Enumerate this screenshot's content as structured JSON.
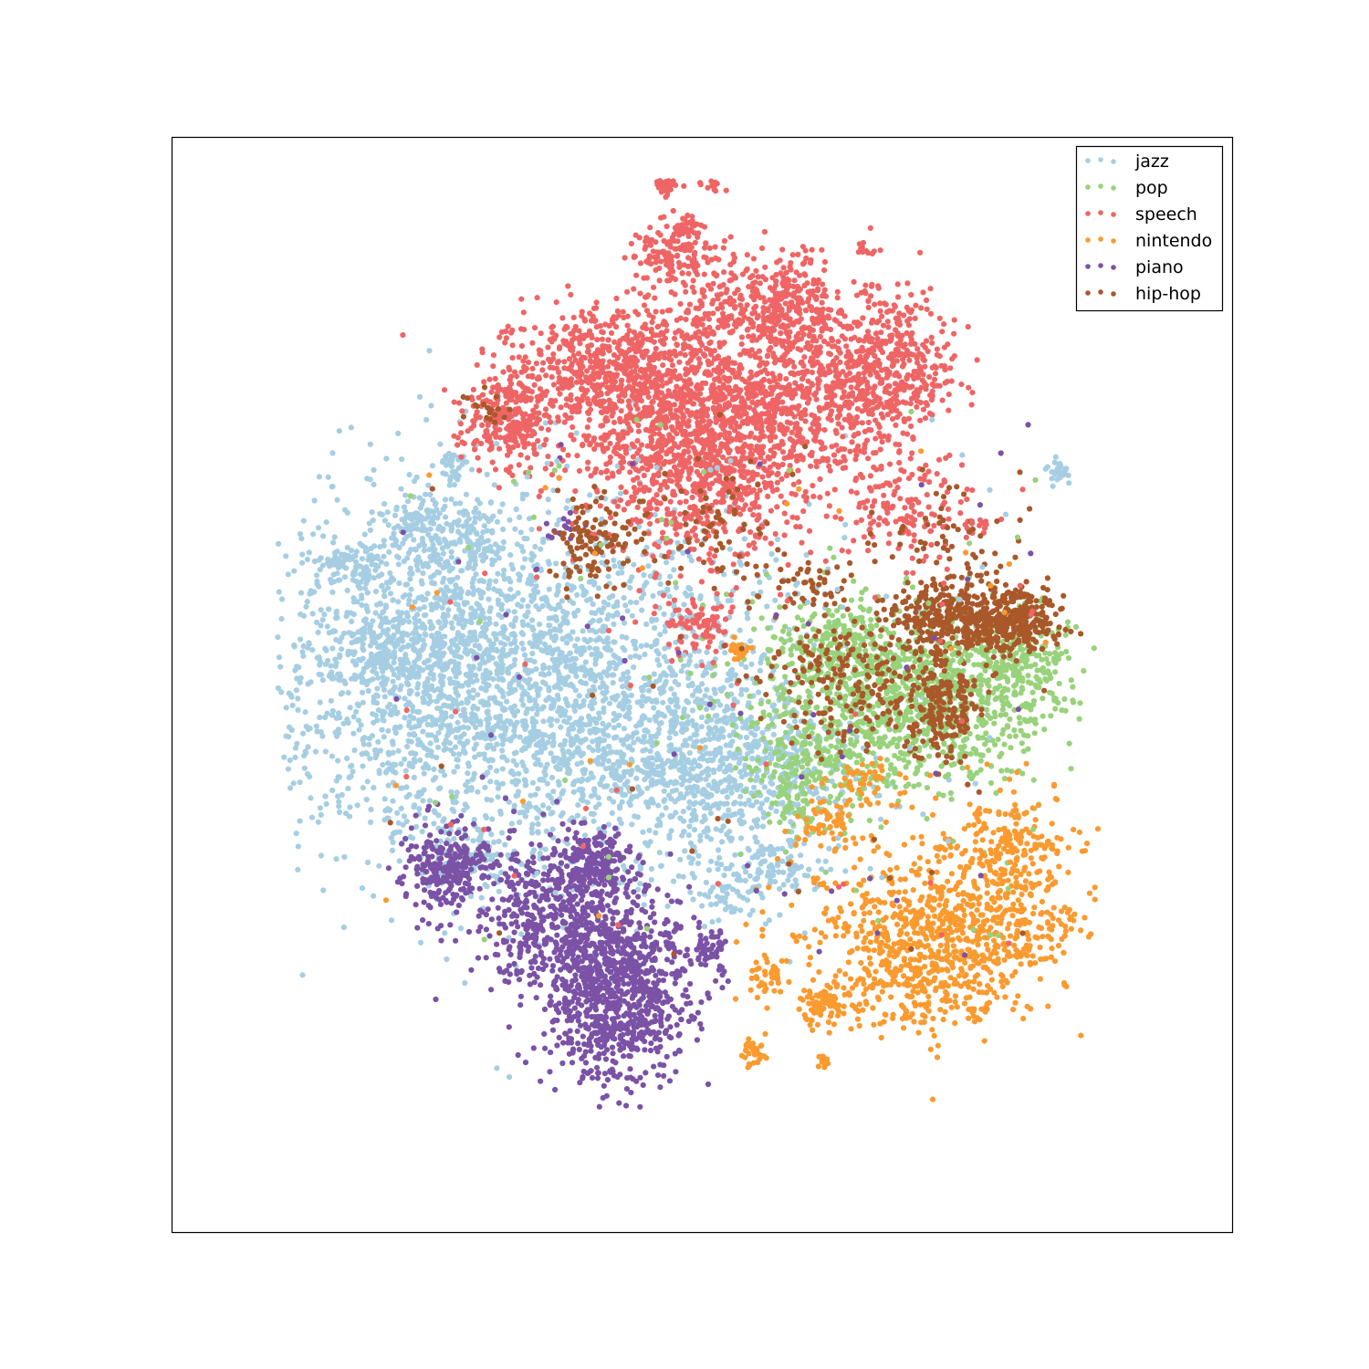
{
  "chart_data": {
    "type": "scatter",
    "title": "",
    "xlabel": "",
    "ylabel": "",
    "xlim": [
      -100,
      100
    ],
    "ylim": [
      -100,
      100
    ],
    "ticks": false,
    "grid": false,
    "legend_position": "top-right",
    "series": [
      {
        "name": "jazz",
        "color": "#a6cee3",
        "clusters": [
          {
            "cx": -30,
            "cy": -2,
            "sx": 23,
            "sy": 17,
            "n": 2600
          },
          {
            "cx": -55,
            "cy": 8,
            "sx": 12,
            "sy": 14,
            "n": 700
          },
          {
            "cx": 5,
            "cy": -14,
            "sx": 13,
            "sy": 8,
            "n": 650
          },
          {
            "cx": -66,
            "cy": 22,
            "sx": 3,
            "sy": 2,
            "n": 70
          },
          {
            "cx": -60,
            "cy": 6,
            "sx": 4,
            "sy": 3,
            "n": 90
          },
          {
            "cx": -53,
            "cy": 30,
            "sx": 3,
            "sy": 3,
            "n": 90
          },
          {
            "cx": -44,
            "cy": 27,
            "sx": 3,
            "sy": 3,
            "n": 70
          },
          {
            "cx": -45,
            "cy": -31,
            "sx": 4,
            "sy": 3,
            "n": 80
          },
          {
            "cx": -47,
            "cy": 40,
            "sx": 1.3,
            "sy": 1.3,
            "n": 30
          },
          {
            "cx": 67,
            "cy": 39,
            "sx": 1.3,
            "sy": 1,
            "n": 25
          },
          {
            "cx": 14,
            "cy": -33,
            "sx": 5,
            "sy": 3,
            "n": 110
          },
          {
            "cx": 4,
            "cy": -38,
            "sx": 3,
            "sy": 2,
            "n": 40
          }
        ]
      },
      {
        "name": "pop",
        "color": "#98d27a",
        "clusters": [
          {
            "cx": 38,
            "cy": -3,
            "sx": 14,
            "sy": 8,
            "n": 1150
          },
          {
            "cx": 59,
            "cy": 4,
            "sx": 6,
            "sy": 5,
            "n": 200
          },
          {
            "cx": 18,
            "cy": -18,
            "sx": 4,
            "sy": 5,
            "n": 150
          },
          {
            "cx": 24,
            "cy": 8,
            "sx": 8,
            "sy": 4,
            "n": 150
          }
        ]
      },
      {
        "name": "speech",
        "color": "#ef6565",
        "clusters": [
          {
            "cx": 0,
            "cy": 45,
            "sx": 11,
            "sy": 10,
            "n": 1500
          },
          {
            "cx": -18,
            "cy": 57,
            "sx": 9,
            "sy": 6,
            "n": 650
          },
          {
            "cx": 24,
            "cy": 56,
            "sx": 9,
            "sy": 8,
            "n": 550
          },
          {
            "cx": 36,
            "cy": 59,
            "sx": 6,
            "sy": 6,
            "n": 300
          },
          {
            "cx": -37,
            "cy": 48,
            "sx": 4,
            "sy": 4,
            "n": 250
          },
          {
            "cx": 16,
            "cy": 70,
            "sx": 4,
            "sy": 4,
            "n": 220
          },
          {
            "cx": 3,
            "cy": 69,
            "sx": 5,
            "sy": 5,
            "n": 150
          },
          {
            "cx": -6,
            "cy": 79,
            "sx": 4,
            "sy": 3,
            "n": 120
          },
          {
            "cx": -7,
            "cy": 92,
            "sx": 1.2,
            "sy": 1.3,
            "n": 45
          },
          {
            "cx": 3,
            "cy": 92,
            "sx": 1.2,
            "sy": 1,
            "n": 20
          },
          {
            "cx": -3,
            "cy": 84,
            "sx": 2,
            "sy": 1.3,
            "n": 30
          },
          {
            "cx": 38,
            "cy": 33,
            "sx": 6,
            "sy": 5,
            "n": 150
          },
          {
            "cx": -1,
            "cy": 11,
            "sx": 3,
            "sy": 3,
            "n": 90
          },
          {
            "cx": 31,
            "cy": 79,
            "sx": 1,
            "sy": 1,
            "n": 10
          },
          {
            "cx": 52,
            "cy": 29,
            "sx": 1.5,
            "sy": 1,
            "n": 15
          }
        ]
      },
      {
        "name": "nintendo",
        "color": "#fb9a2f",
        "clusters": [
          {
            "cx": 45,
            "cy": -45,
            "sx": 12,
            "sy": 8,
            "n": 800
          },
          {
            "cx": 59,
            "cy": -35,
            "sx": 6,
            "sy": 8,
            "n": 200
          },
          {
            "cx": 24,
            "cy": -58,
            "sx": 3,
            "sy": 2,
            "n": 90
          },
          {
            "cx": 12,
            "cy": -54,
            "sx": 2,
            "sy": 2,
            "n": 40
          },
          {
            "cx": 10,
            "cy": -67,
            "sx": 1,
            "sy": 1.3,
            "n": 40
          },
          {
            "cx": 40,
            "cy": -56,
            "sx": 6,
            "sy": 4,
            "n": 70
          },
          {
            "cx": 24,
            "cy": -25,
            "sx": 3,
            "sy": 3,
            "n": 60
          },
          {
            "cx": 7,
            "cy": 6,
            "sx": 0.8,
            "sy": 0.8,
            "n": 30
          },
          {
            "cx": 32,
            "cy": -18,
            "sx": 3,
            "sy": 2,
            "n": 40
          },
          {
            "cx": 23,
            "cy": -69,
            "sx": 0.6,
            "sy": 0.6,
            "n": 10
          },
          {
            "cx": 58,
            "cy": -28,
            "sx": 5,
            "sy": 3,
            "n": 60
          }
        ]
      },
      {
        "name": "piano",
        "color": "#7b52a6",
        "clusters": [
          {
            "cx": -16,
            "cy": -55,
            "sx": 7,
            "sy": 9,
            "n": 1000
          },
          {
            "cx": -28,
            "cy": -42,
            "sx": 8,
            "sy": 7,
            "n": 500
          },
          {
            "cx": -48,
            "cy": -33,
            "sx": 4,
            "sy": 4,
            "n": 250
          },
          {
            "cx": -20,
            "cy": -32,
            "sx": 3,
            "sy": 3,
            "n": 150
          },
          {
            "cx": 2,
            "cy": -48,
            "sx": 2,
            "sy": 2,
            "n": 50
          },
          {
            "cx": -25,
            "cy": 29,
            "sx": 2,
            "sy": 1.5,
            "n": 15
          }
        ]
      },
      {
        "name": "hip-hop",
        "color": "#a9582a",
        "clusters": [
          {
            "cx": 56,
            "cy": 12,
            "sx": 6,
            "sy": 3,
            "n": 450
          },
          {
            "cx": 43,
            "cy": 12,
            "sx": 5,
            "sy": 3,
            "n": 150
          },
          {
            "cx": 46,
            "cy": -5,
            "sx": 3,
            "sy": 5,
            "n": 150
          },
          {
            "cx": 32,
            "cy": 0,
            "sx": 10,
            "sy": 6,
            "n": 250
          },
          {
            "cx": -20,
            "cy": 25,
            "sx": 4,
            "sy": 4,
            "n": 100
          },
          {
            "cx": -1,
            "cy": 28,
            "sx": 8,
            "sy": 5,
            "n": 80
          },
          {
            "cx": 45,
            "cy": 27,
            "sx": 6,
            "sy": 5,
            "n": 60
          },
          {
            "cx": -41,
            "cy": 50,
            "sx": 2,
            "sy": 2,
            "n": 20
          },
          {
            "cx": 19,
            "cy": 18,
            "sx": 5,
            "sy": 3,
            "n": 50
          }
        ]
      }
    ],
    "noise_points": 260
  }
}
